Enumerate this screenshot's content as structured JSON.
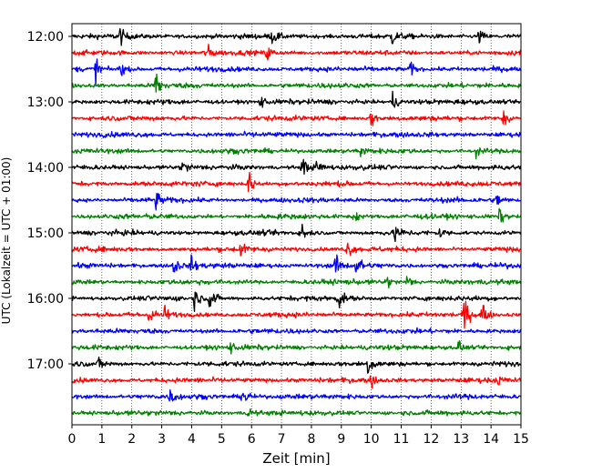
{
  "chart_data": {
    "type": "line",
    "title": "",
    "xlabel": "Zeit  [min]",
    "ylabel": "UTC (Lokalzeit = UTC + 01:00)",
    "xlim": [
      0,
      15
    ],
    "x_ticks": [
      0,
      1,
      2,
      3,
      4,
      5,
      6,
      7,
      8,
      9,
      10,
      11,
      12,
      13,
      14,
      15
    ],
    "y_tick_labels": [
      "12:00",
      "13:00",
      "14:00",
      "15:00",
      "16:00",
      "17:00"
    ],
    "y_tick_rows": [
      0,
      4,
      8,
      12,
      16,
      20
    ],
    "grid": "vertical dotted",
    "trace_interval_minutes": 15,
    "start_time": "12:00",
    "trace_count": 24,
    "series_colors": [
      "#000000",
      "#ff0000",
      "#0000ff",
      "#008000"
    ],
    "events": [
      {
        "row": 0,
        "t": 1.6,
        "amp": 0.6
      },
      {
        "row": 0,
        "t": 6.7,
        "amp": 0.5
      },
      {
        "row": 0,
        "t": 10.7,
        "amp": 0.5
      },
      {
        "row": 0,
        "t": 13.6,
        "amp": 0.5
      },
      {
        "row": 1,
        "t": 4.5,
        "amp": 0.6
      },
      {
        "row": 1,
        "t": 6.5,
        "amp": 0.6
      },
      {
        "row": 2,
        "t": 0.8,
        "amp": 0.8
      },
      {
        "row": 2,
        "t": 1.6,
        "amp": 0.6
      },
      {
        "row": 2,
        "t": 11.3,
        "amp": 0.5
      },
      {
        "row": 3,
        "t": 2.8,
        "amp": 1.2
      },
      {
        "row": 4,
        "t": 10.7,
        "amp": 0.7
      },
      {
        "row": 4,
        "t": 6.3,
        "amp": 0.4
      },
      {
        "row": 5,
        "t": 10.0,
        "amp": 0.6
      },
      {
        "row": 5,
        "t": 14.4,
        "amp": 0.7
      },
      {
        "row": 7,
        "t": 9.6,
        "amp": 0.5
      },
      {
        "row": 7,
        "t": 13.5,
        "amp": 0.4
      },
      {
        "row": 8,
        "t": 3.7,
        "amp": 0.5
      },
      {
        "row": 8,
        "t": 7.7,
        "amp": 0.8
      },
      {
        "row": 8,
        "t": 8.2,
        "amp": 0.7
      },
      {
        "row": 9,
        "t": 5.9,
        "amp": 1.0
      },
      {
        "row": 10,
        "t": 2.8,
        "amp": 0.6
      },
      {
        "row": 10,
        "t": 14.2,
        "amp": 0.5
      },
      {
        "row": 11,
        "t": 9.4,
        "amp": 0.6
      },
      {
        "row": 11,
        "t": 14.3,
        "amp": 0.6
      },
      {
        "row": 12,
        "t": 7.7,
        "amp": 0.7
      },
      {
        "row": 12,
        "t": 10.8,
        "amp": 0.6
      },
      {
        "row": 12,
        "t": 12.3,
        "amp": 0.4
      },
      {
        "row": 13,
        "t": 5.6,
        "amp": 0.5
      },
      {
        "row": 13,
        "t": 9.2,
        "amp": 0.6
      },
      {
        "row": 14,
        "t": 3.4,
        "amp": 0.7
      },
      {
        "row": 14,
        "t": 4.0,
        "amp": 0.6
      },
      {
        "row": 14,
        "t": 8.8,
        "amp": 0.7
      },
      {
        "row": 14,
        "t": 9.5,
        "amp": 0.9
      },
      {
        "row": 15,
        "t": 10.5,
        "amp": 0.5
      },
      {
        "row": 15,
        "t": 11.2,
        "amp": 0.5
      },
      {
        "row": 16,
        "t": 4.1,
        "amp": 0.6
      },
      {
        "row": 16,
        "t": 4.6,
        "amp": 0.9
      },
      {
        "row": 16,
        "t": 8.9,
        "amp": 0.8
      },
      {
        "row": 17,
        "t": 2.6,
        "amp": 0.6
      },
      {
        "row": 17,
        "t": 3.1,
        "amp": 0.5
      },
      {
        "row": 17,
        "t": 13.1,
        "amp": 1.3
      },
      {
        "row": 17,
        "t": 13.7,
        "amp": 1.0
      },
      {
        "row": 19,
        "t": 12.9,
        "amp": 0.5
      },
      {
        "row": 19,
        "t": 5.3,
        "amp": 0.3
      },
      {
        "row": 20,
        "t": 9.9,
        "amp": 0.8
      },
      {
        "row": 20,
        "t": 0.9,
        "amp": 0.4
      },
      {
        "row": 21,
        "t": 10.0,
        "amp": 0.4
      },
      {
        "row": 21,
        "t": 14.2,
        "amp": 0.3
      },
      {
        "row": 22,
        "t": 3.3,
        "amp": 0.6
      },
      {
        "row": 22,
        "t": 5.7,
        "amp": 0.9
      },
      {
        "row": 23,
        "t": 5.9,
        "amp": 0.4
      }
    ]
  }
}
